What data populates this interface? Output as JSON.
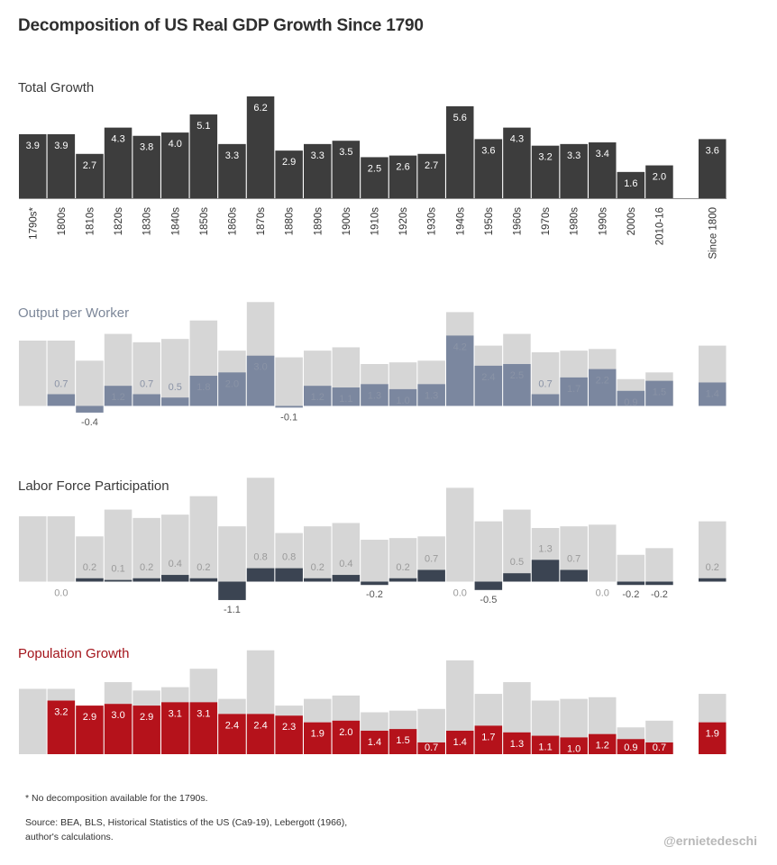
{
  "title": "Decomposition of US Real GDP Growth Since 1790",
  "footnote": "* No decomposition available for the 1790s.",
  "source_line1": "Source: BEA, BLS, Historical Statistics of the US (Ca9-19), Lebergott (1966),",
  "source_line2": "author's calculations.",
  "credit": "@ernietedeschi",
  "colors": {
    "total": "#3d3d3d",
    "output": "#7b879f",
    "output_label": "#8a93a6",
    "labor": "#3b4452",
    "population": "#b5121b",
    "population_title": "#a3141b",
    "ghost": "#d6d6d6",
    "output_title": "#7c8799"
  },
  "chart_data": [
    {
      "type": "bar",
      "title": "Total Growth",
      "categories": [
        "1790s*",
        "1800s",
        "1810s",
        "1820s",
        "1830s",
        "1840s",
        "1850s",
        "1860s",
        "1870s",
        "1880s",
        "1890s",
        "1900s",
        "1910s",
        "1920s",
        "1930s",
        "1940s",
        "1950s",
        "1960s",
        "1970s",
        "1980s",
        "1990s",
        "2000s",
        "2010-16",
        "Since 1800"
      ],
      "values": [
        3.9,
        3.9,
        2.7,
        4.3,
        3.8,
        4.0,
        5.1,
        3.3,
        6.2,
        2.9,
        3.3,
        3.5,
        2.5,
        2.6,
        2.7,
        5.6,
        3.6,
        4.3,
        3.2,
        3.3,
        3.4,
        1.6,
        2.0,
        3.6
      ],
      "value_labels": [
        "3.9",
        "3.9",
        "2.7",
        "4.3",
        "3.8",
        "4.0",
        "5.1",
        "3.3",
        "6.2",
        "2.9",
        "3.3",
        "3.5",
        "2.5",
        "2.6",
        "2.7",
        "5.6",
        "3.6",
        "4.3",
        "3.2",
        "3.3",
        "3.4",
        "1.6",
        "2.0",
        "3.6"
      ]
    },
    {
      "type": "bar",
      "title": "Output per Worker",
      "categories": [
        "1790s*",
        "1800s",
        "1810s",
        "1820s",
        "1830s",
        "1840s",
        "1850s",
        "1860s",
        "1870s",
        "1880s",
        "1890s",
        "1900s",
        "1910s",
        "1920s",
        "1930s",
        "1940s",
        "1950s",
        "1960s",
        "1970s",
        "1980s",
        "1990s",
        "2000s",
        "2010-16",
        "Since 1800"
      ],
      "values": [
        null,
        0.7,
        -0.4,
        1.2,
        0.7,
        0.5,
        1.8,
        2.0,
        3.0,
        -0.1,
        1.2,
        1.1,
        1.3,
        1.0,
        1.3,
        4.2,
        2.4,
        2.5,
        0.7,
        1.7,
        2.2,
        0.9,
        1.5,
        1.4
      ],
      "value_labels": [
        "",
        "0.7",
        "-0.4",
        "1.2",
        "0.7",
        "0.5",
        "1.8",
        "2.0",
        "3.0",
        "-0.1",
        "1.2",
        "1.1",
        "1.3",
        "1.0",
        "1.3",
        "4.2",
        "2.4",
        "2.5",
        "0.7",
        "1.7",
        "2.2",
        "0.9",
        "1.5",
        "1.4"
      ]
    },
    {
      "type": "bar",
      "title": "Labor Force Participation",
      "categories": [
        "1790s*",
        "1800s",
        "1810s",
        "1820s",
        "1830s",
        "1840s",
        "1850s",
        "1860s",
        "1870s",
        "1880s",
        "1890s",
        "1900s",
        "1910s",
        "1920s",
        "1930s",
        "1940s",
        "1950s",
        "1960s",
        "1970s",
        "1980s",
        "1990s",
        "2000s",
        "2010-16",
        "Since 1800"
      ],
      "values": [
        null,
        0.0,
        0.2,
        0.1,
        0.2,
        0.4,
        0.2,
        -1.1,
        0.8,
        0.8,
        0.2,
        0.4,
        -0.2,
        0.2,
        0.7,
        0.0,
        -0.5,
        0.5,
        1.3,
        0.7,
        0.0,
        -0.2,
        -0.2,
        0.2
      ],
      "value_labels": [
        "",
        "0.0",
        "0.2",
        "0.1",
        "0.2",
        "0.4",
        "0.2",
        "-1.1",
        "0.8",
        "0.8",
        "0.2",
        "0.4",
        "-0.2",
        "0.2",
        "0.7",
        "0.0",
        "-0.5",
        "0.5",
        "1.3",
        "0.7",
        "0.0",
        "-0.2",
        "-0.2",
        "0.2"
      ]
    },
    {
      "type": "bar",
      "title": "Population Growth",
      "categories": [
        "1790s*",
        "1800s",
        "1810s",
        "1820s",
        "1830s",
        "1840s",
        "1850s",
        "1860s",
        "1870s",
        "1880s",
        "1890s",
        "1900s",
        "1910s",
        "1920s",
        "1930s",
        "1940s",
        "1950s",
        "1960s",
        "1970s",
        "1980s",
        "1990s",
        "2000s",
        "2010-16",
        "Since 1800"
      ],
      "values": [
        null,
        3.2,
        2.9,
        3.0,
        2.9,
        3.1,
        3.1,
        2.4,
        2.4,
        2.3,
        1.9,
        2.0,
        1.4,
        1.5,
        0.7,
        1.4,
        1.7,
        1.3,
        1.1,
        1.0,
        1.2,
        0.9,
        0.7,
        1.9
      ],
      "value_labels": [
        "",
        "3.2",
        "2.9",
        "3.0",
        "2.9",
        "3.1",
        "3.1",
        "2.4",
        "2.4",
        "2.3",
        "1.9",
        "2.0",
        "1.4",
        "1.5",
        "0.7",
        "1.4",
        "1.7",
        "1.3",
        "1.1",
        "1.0",
        "1.2",
        "0.9",
        "0.7",
        "1.9"
      ]
    }
  ]
}
